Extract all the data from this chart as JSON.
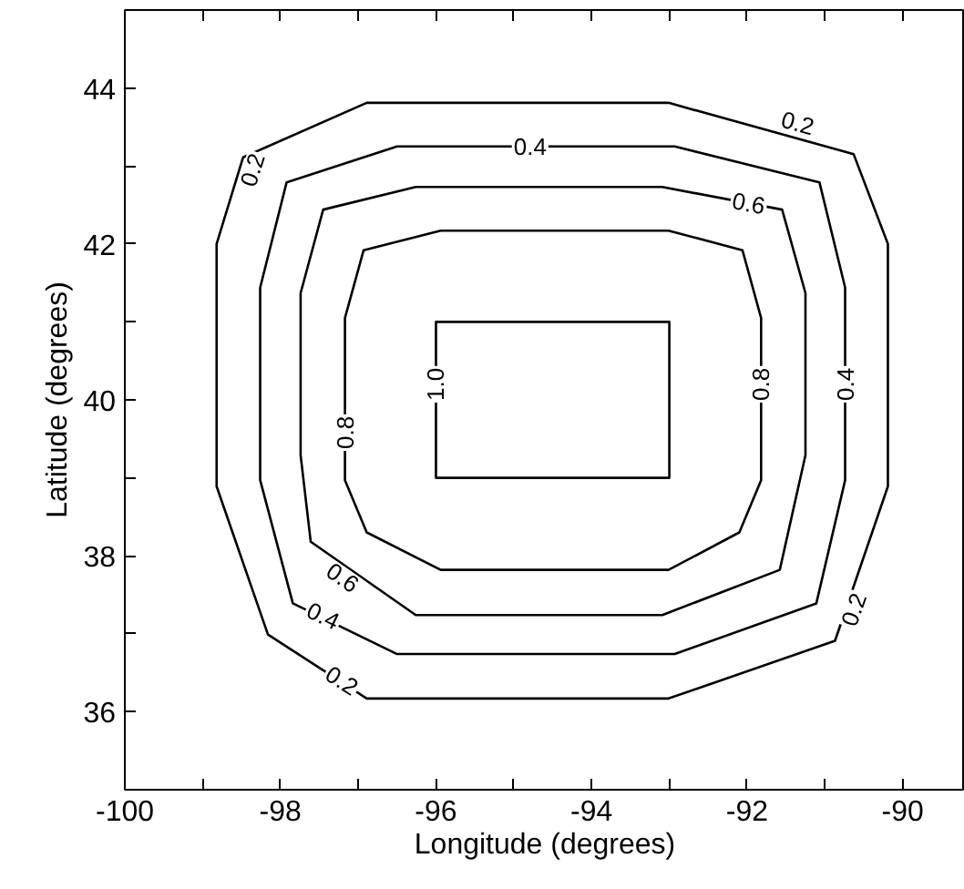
{
  "chart_data": {
    "type": "line",
    "xlabel": "Longitude (degrees)",
    "ylabel": "Latitude (degrees)",
    "xlim": [
      -100,
      -89.2
    ],
    "ylim": [
      35,
      45
    ],
    "xticks": [
      -100,
      {
        "value": -99,
        "label": null
      },
      -98,
      {
        "value": -97,
        "label": null
      },
      -96,
      {
        "value": -95,
        "label": null
      },
      -94,
      {
        "value": -93,
        "label": null
      },
      -92,
      {
        "value": -91,
        "label": null
      },
      -90
    ],
    "yticks": [
      36,
      {
        "value": 37,
        "label": null
      },
      38,
      {
        "value": 39,
        "label": null
      },
      40,
      {
        "value": 41,
        "label": null
      },
      42,
      {
        "value": 43,
        "label": null
      },
      44
    ],
    "grid": false,
    "marker": "none",
    "line_style": "solid",
    "series": [
      {
        "color": "#000000",
        "x": [
          -98.82,
          -98.82,
          -98.48,
          -96.89,
          -93.01,
          -90.63,
          -90.19,
          -90.19,
          null,
          -98.82,
          -98.82,
          -98.16,
          -96.89,
          -93.01,
          -90.87,
          -90.19,
          -90.19
        ],
        "values": [
          40.0,
          42.0,
          43.11,
          43.81,
          43.81,
          43.15,
          42.0,
          40.0,
          null,
          40.0,
          38.89,
          36.99,
          36.17,
          36.17,
          36.91,
          38.89,
          40.0
        ]
      },
      {
        "color": "#000000",
        "x": [
          -98.26,
          -98.26,
          -97.92,
          -96.5,
          -92.93,
          -91.07,
          -90.74,
          -90.74,
          null,
          -98.26,
          -98.26,
          -97.84,
          -96.5,
          -92.93,
          -91.11,
          -90.74,
          -90.74
        ],
        "values": [
          40.0,
          41.44,
          42.79,
          43.25,
          43.25,
          42.79,
          41.44,
          40.0,
          null,
          40.0,
          38.97,
          37.39,
          36.74,
          36.74,
          37.39,
          38.97,
          40.0
        ]
      },
      {
        "color": "#000000",
        "x": [
          -97.74,
          -97.74,
          -97.45,
          -96.26,
          -93.09,
          -91.55,
          -91.25,
          -91.25,
          null,
          -97.74,
          -97.74,
          -97.61,
          -96.26,
          -93.09,
          -91.58,
          -91.25,
          -91.25
        ],
        "values": [
          40.0,
          41.37,
          42.44,
          42.73,
          42.73,
          42.44,
          41.37,
          40.0,
          null,
          40.0,
          39.29,
          38.18,
          37.24,
          37.24,
          37.82,
          39.29,
          40.0
        ]
      },
      {
        "color": "#000000",
        "x": [
          -97.17,
          -97.17,
          -96.93,
          -95.94,
          -93.01,
          -92.06,
          -91.82,
          -91.82,
          null,
          -97.17,
          -97.17,
          -96.89,
          -95.94,
          -93.01,
          -92.1,
          -91.82,
          -91.82
        ],
        "values": [
          40.0,
          41.05,
          41.92,
          42.17,
          42.17,
          41.92,
          41.05,
          40.0,
          null,
          40.0,
          38.97,
          38.3,
          37.82,
          37.82,
          38.3,
          38.97,
          40.0
        ]
      },
      {
        "color": "#000000",
        "x": [
          -96,
          -96,
          -93,
          -93,
          null,
          -96,
          -96,
          -93,
          -93
        ],
        "values": [
          40.0,
          41,
          41,
          40.0,
          null,
          40.0,
          39,
          39,
          40.0
        ]
      }
    ],
    "annotations": [
      {
        "text": "0.2",
        "x": -98.36,
        "y": 42.95
      },
      {
        "text": "0.4",
        "x": -94.79,
        "y": 43.25
      },
      {
        "text": "0.2",
        "x": -91.35,
        "y": 43.55
      },
      {
        "text": "0.6",
        "x": -91.98,
        "y": 42.52
      },
      {
        "text": "1.0",
        "x": -96.0,
        "y": 40.2
      },
      {
        "text": "0.8",
        "x": -97.17,
        "y": 39.58
      },
      {
        "text": "0.8",
        "x": -91.82,
        "y": 40.2
      },
      {
        "text": "0.4",
        "x": -90.74,
        "y": 40.2
      },
      {
        "text": "0.6",
        "x": -97.2,
        "y": 37.72
      },
      {
        "text": "0.4",
        "x": -97.45,
        "y": 37.23
      },
      {
        "text": "0.2",
        "x": -97.21,
        "y": 36.4
      },
      {
        "text": "0.2",
        "x": -90.63,
        "y": 37.31
      }
    ]
  }
}
